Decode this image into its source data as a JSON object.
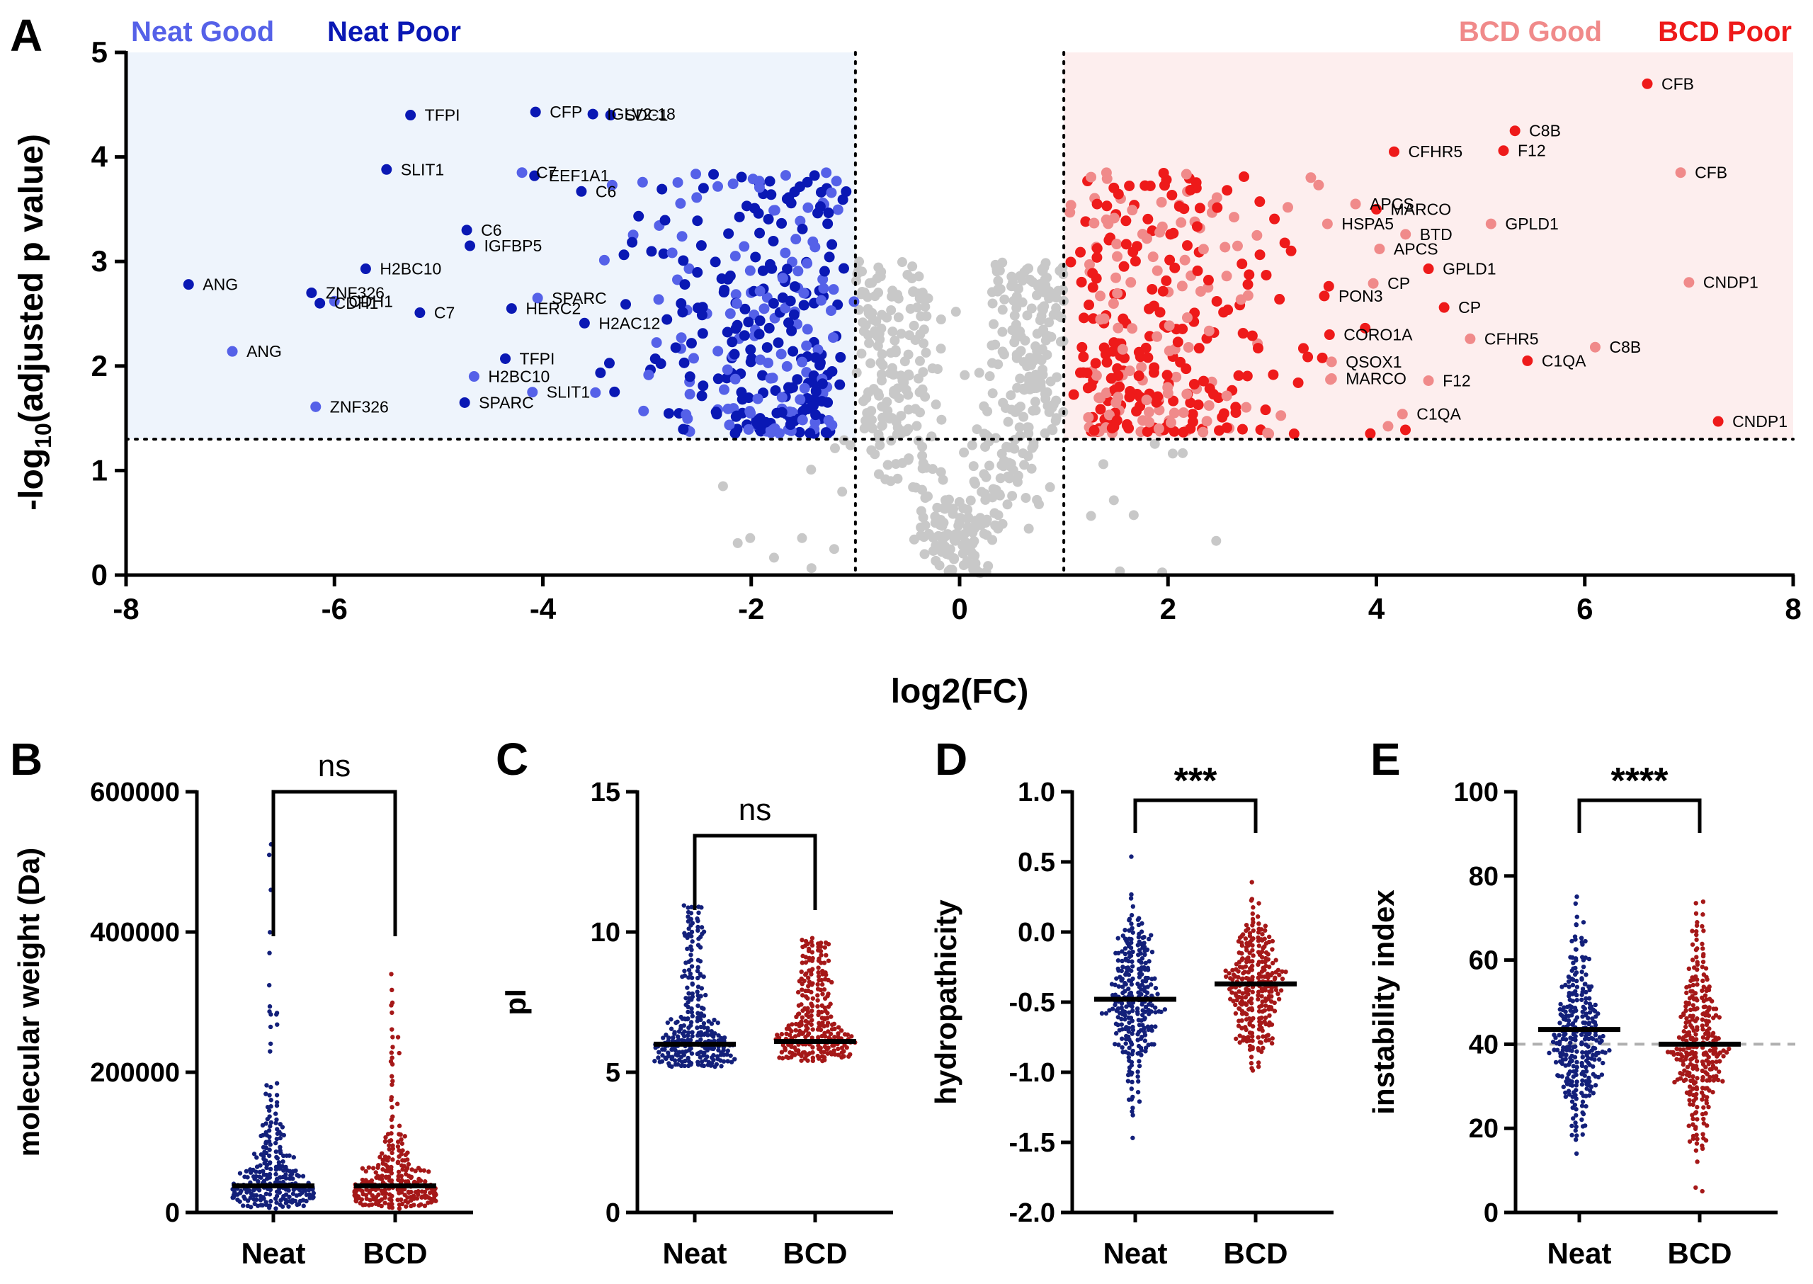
{
  "colors": {
    "neat_good": "#5561e8",
    "neat_poor": "#0a18b4",
    "bcd_good": "#f08a8a",
    "bcd_poor": "#ee1a1a",
    "ns_point": "#c8c8c8",
    "neat_region": "#eef4fc",
    "bcd_region": "#fdeeee",
    "neat_dist": "#13207a",
    "bcd_dist": "#a51818"
  },
  "chart_data": [
    {
      "panel": "A",
      "type": "scatter",
      "title": "",
      "xlabel": "log2(FC)",
      "ylabel_main": "-log",
      "ylabel_sub": "10",
      "ylabel_rest": "(adjusted p value)",
      "xlim": [
        -8,
        8
      ],
      "ylim": [
        0,
        5
      ],
      "xticks": [
        "-8",
        "-6",
        "-4",
        "-2",
        "0",
        "2",
        "4",
        "6",
        "8"
      ],
      "yticks": [
        "0",
        "1",
        "2",
        "3",
        "4",
        "5"
      ],
      "thresholds": {
        "fc_low": -1,
        "fc_high": 1,
        "p": 1.3
      },
      "legend": [
        {
          "name": "Neat Good",
          "color_key": "neat_good"
        },
        {
          "name": "Neat Poor",
          "color_key": "neat_poor"
        },
        {
          "name": "BCD Good",
          "color_key": "bcd_good"
        },
        {
          "name": "BCD Poor",
          "color_key": "bcd_poor"
        }
      ],
      "legend_placement": "top-left / top-right",
      "labeled_points": [
        {
          "label": "ANG",
          "x": -7.4,
          "y": 2.78,
          "group": "neat_poor"
        },
        {
          "label": "ANG",
          "x": -6.98,
          "y": 2.14,
          "group": "neat_good"
        },
        {
          "label": "ZNF326",
          "x": -6.22,
          "y": 2.7,
          "group": "neat_poor"
        },
        {
          "label": "CDH1",
          "x": -6.0,
          "y": 2.62,
          "group": "neat_good"
        },
        {
          "label": "CDH1",
          "x": -6.14,
          "y": 2.6,
          "group": "neat_poor"
        },
        {
          "label": "ZNF326",
          "x": -6.18,
          "y": 1.61,
          "group": "neat_good"
        },
        {
          "label": "H2BC10",
          "x": -5.7,
          "y": 2.93,
          "group": "neat_poor"
        },
        {
          "label": "C7",
          "x": -5.18,
          "y": 2.51,
          "group": "neat_poor"
        },
        {
          "label": "SLIT1",
          "x": -5.5,
          "y": 3.88,
          "group": "neat_poor"
        },
        {
          "label": "TFPI",
          "x": -5.27,
          "y": 4.4,
          "group": "neat_poor"
        },
        {
          "label": "C6",
          "x": -4.73,
          "y": 3.3,
          "group": "neat_poor"
        },
        {
          "label": "IGFBP5",
          "x": -4.7,
          "y": 3.15,
          "group": "neat_poor"
        },
        {
          "label": "TFPI",
          "x": -4.36,
          "y": 2.07,
          "group": "neat_poor"
        },
        {
          "label": "H2BC10",
          "x": -4.66,
          "y": 1.9,
          "group": "neat_good"
        },
        {
          "label": "SLIT1",
          "x": -4.1,
          "y": 1.75,
          "group": "neat_good"
        },
        {
          "label": "SPARC",
          "x": -4.75,
          "y": 1.65,
          "group": "neat_poor"
        },
        {
          "label": "SPARC",
          "x": -4.05,
          "y": 2.65,
          "group": "neat_good"
        },
        {
          "label": "HERC2",
          "x": -4.3,
          "y": 2.55,
          "group": "neat_poor"
        },
        {
          "label": "H2AC12",
          "x": -3.6,
          "y": 2.41,
          "group": "neat_poor"
        },
        {
          "label": "C7",
          "x": -4.2,
          "y": 3.85,
          "group": "neat_good"
        },
        {
          "label": "EEF1A1",
          "x": -4.08,
          "y": 3.82,
          "group": "neat_poor"
        },
        {
          "label": "C6",
          "x": -3.63,
          "y": 3.67,
          "group": "neat_poor"
        },
        {
          "label": "CFP",
          "x": -4.07,
          "y": 4.43,
          "group": "neat_poor"
        },
        {
          "label": "IGLV2-18",
          "x": -3.52,
          "y": 4.41,
          "group": "neat_poor"
        },
        {
          "label": "SDC1",
          "x": -3.35,
          "y": 4.4,
          "group": "neat_poor"
        },
        {
          "label": "CFB",
          "x": 6.6,
          "y": 4.7,
          "group": "bcd_poor"
        },
        {
          "label": "C8B",
          "x": 5.33,
          "y": 4.25,
          "group": "bcd_poor"
        },
        {
          "label": "F12",
          "x": 5.22,
          "y": 4.06,
          "group": "bcd_poor"
        },
        {
          "label": "CFHR5",
          "x": 4.17,
          "y": 4.05,
          "group": "bcd_poor"
        },
        {
          "label": "CFB",
          "x": 6.92,
          "y": 3.85,
          "group": "bcd_good"
        },
        {
          "label": "APCS",
          "x": 3.8,
          "y": 3.55,
          "group": "bcd_good"
        },
        {
          "label": "MARCO",
          "x": 4.0,
          "y": 3.5,
          "group": "bcd_poor"
        },
        {
          "label": "HSPA5",
          "x": 3.53,
          "y": 3.36,
          "group": "bcd_good"
        },
        {
          "label": "GPLD1",
          "x": 5.1,
          "y": 3.36,
          "group": "bcd_good"
        },
        {
          "label": "BTD",
          "x": 4.28,
          "y": 3.26,
          "group": "bcd_good"
        },
        {
          "label": "APCS",
          "x": 4.03,
          "y": 3.12,
          "group": "bcd_good"
        },
        {
          "label": "GPLD1",
          "x": 4.5,
          "y": 2.93,
          "group": "bcd_poor"
        },
        {
          "label": "CP",
          "x": 3.97,
          "y": 2.79,
          "group": "bcd_good"
        },
        {
          "label": "CNDP1",
          "x": 7.0,
          "y": 2.8,
          "group": "bcd_good"
        },
        {
          "label": "PON3",
          "x": 3.5,
          "y": 2.67,
          "group": "bcd_poor"
        },
        {
          "label": "CP",
          "x": 4.65,
          "y": 2.56,
          "group": "bcd_poor"
        },
        {
          "label": "CORO1A",
          "x": 3.55,
          "y": 2.3,
          "group": "bcd_poor"
        },
        {
          "label": "CFHR5",
          "x": 4.9,
          "y": 2.26,
          "group": "bcd_good"
        },
        {
          "label": "C8B",
          "x": 6.1,
          "y": 2.18,
          "group": "bcd_good"
        },
        {
          "label": "QSOX1",
          "x": 3.57,
          "y": 2.04,
          "group": "bcd_good"
        },
        {
          "label": "C1QA",
          "x": 5.45,
          "y": 2.05,
          "group": "bcd_poor"
        },
        {
          "label": "MARCO",
          "x": 3.57,
          "y": 1.88,
          "group": "bcd_good"
        },
        {
          "label": "F12",
          "x": 4.5,
          "y": 1.86,
          "group": "bcd_good"
        },
        {
          "label": "C1QA",
          "x": 4.25,
          "y": 1.54,
          "group": "bcd_good"
        },
        {
          "label": "CNDP1",
          "x": 7.28,
          "y": 1.47,
          "group": "bcd_poor"
        }
      ]
    },
    {
      "panel": "B",
      "type": "scatter",
      "title": "",
      "ylabel": "molecular weight (Da)",
      "ylim": [
        0,
        600000
      ],
      "yticks": [
        "0",
        "200000",
        "400000",
        "600000"
      ],
      "categories": [
        "Neat",
        "BCD"
      ],
      "medians": [
        38000,
        38000
      ],
      "significance": "ns",
      "reference_line": null
    },
    {
      "panel": "C",
      "type": "scatter",
      "title": "",
      "ylabel": "pI",
      "ylim": [
        0,
        15
      ],
      "yticks": [
        "0",
        "5",
        "10",
        "15"
      ],
      "categories": [
        "Neat",
        "BCD"
      ],
      "medians": [
        6.0,
        6.1
      ],
      "significance": "ns",
      "reference_line": null
    },
    {
      "panel": "D",
      "type": "scatter",
      "title": "",
      "ylabel": "hydropathicity",
      "ylim": [
        -2.0,
        1.0
      ],
      "yticks": [
        "-2.0",
        "-1.5",
        "-1.0",
        "-0.5",
        "0.0",
        "0.5",
        "1.0"
      ],
      "categories": [
        "Neat",
        "BCD"
      ],
      "medians": [
        -0.48,
        -0.37
      ],
      "significance": "***",
      "reference_line": null
    },
    {
      "panel": "E",
      "type": "scatter",
      "title": "",
      "ylabel": "instability index",
      "ylim": [
        0,
        100
      ],
      "yticks": [
        "0",
        "20",
        "40",
        "60",
        "80",
        "100"
      ],
      "categories": [
        "Neat",
        "BCD"
      ],
      "medians": [
        43.5,
        40.0
      ],
      "significance": "****",
      "reference_line": 40
    }
  ]
}
